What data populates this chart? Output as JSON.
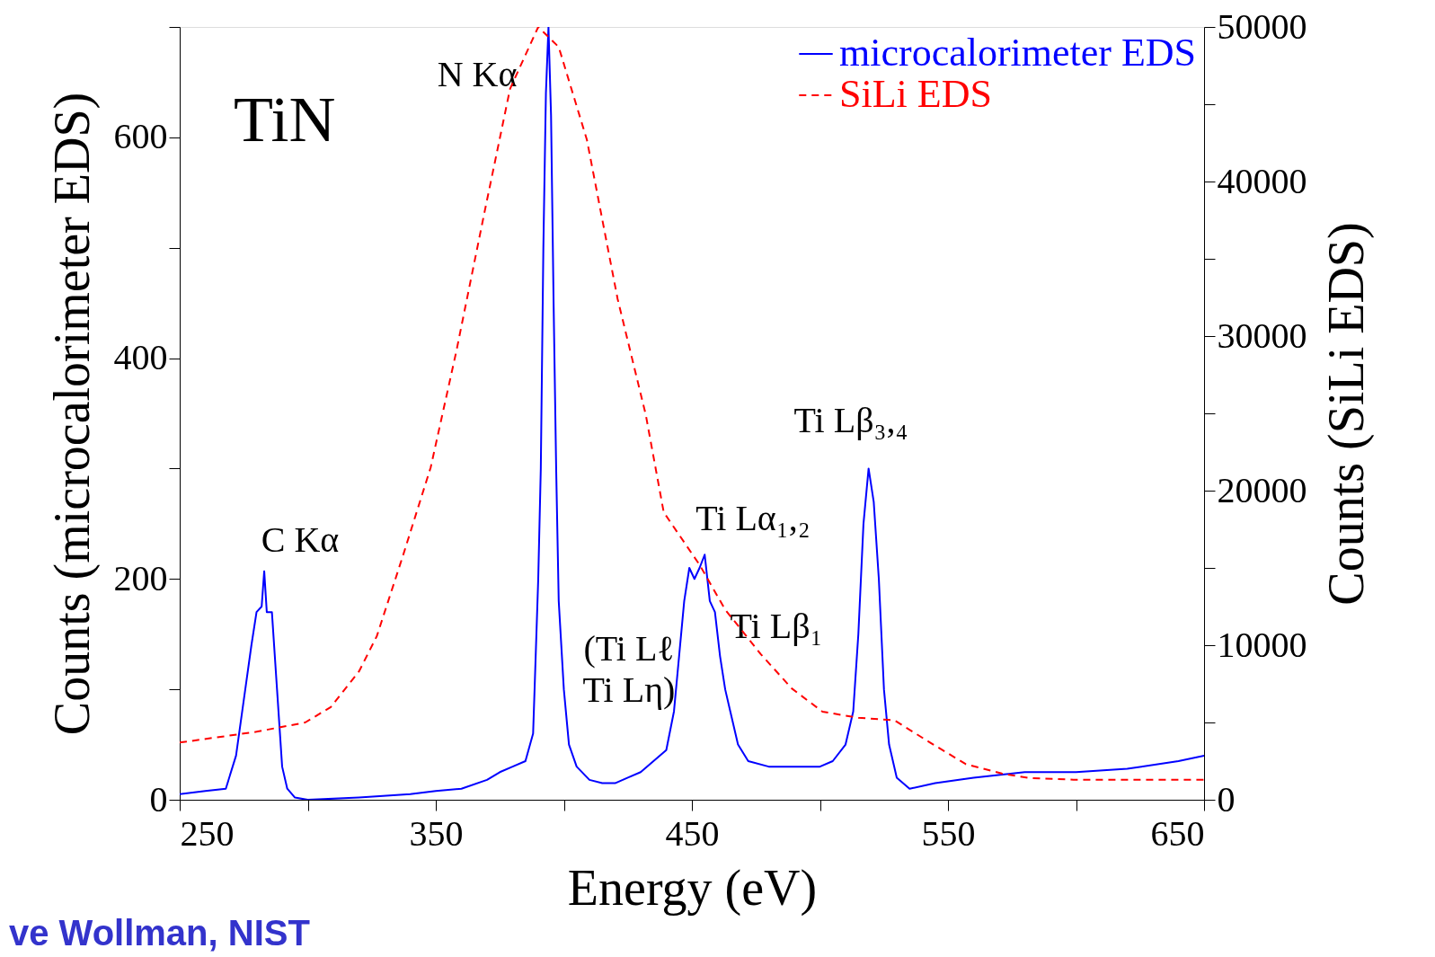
{
  "chart_data": {
    "type": "line",
    "xlabel": "Energy (eV)",
    "ylabel": "Counts (microcalorimeter EDS)",
    "y2label": "Counts (SiLi EDS)",
    "xlim": [
      250,
      650
    ],
    "xticks": [
      250,
      {
        "value": 300,
        "label": null
      },
      350,
      {
        "value": 400,
        "label": null
      },
      450,
      {
        "value": 500,
        "label": null
      },
      550,
      {
        "value": 600,
        "label": null
      },
      650
    ],
    "ylim": [
      0,
      700
    ],
    "yticks": [
      0,
      {
        "value": 100,
        "label": null
      },
      200,
      {
        "value": 300,
        "label": null
      },
      400,
      {
        "value": 500,
        "label": null
      },
      600,
      {
        "value": 700,
        "label": null
      }
    ],
    "y2lim": [
      0,
      50000
    ],
    "y2ticks": [
      0,
      {
        "value": 5000,
        "label": null
      },
      10000,
      {
        "value": 15000,
        "label": null
      },
      20000,
      {
        "value": 25000,
        "label": null
      },
      30000,
      {
        "value": 35000,
        "label": null
      },
      40000,
      {
        "value": 45000,
        "label": null
      },
      50000
    ],
    "grid": false,
    "legend": "top right",
    "series": [
      {
        "name": "microcalorimeter EDS",
        "color": "#0000ff",
        "line_style": "solid",
        "x": [
          250,
          260,
          268,
          272,
          275,
          278,
          280,
          282,
          283,
          284,
          286,
          288,
          290,
          292,
          295,
          300,
          320,
          340,
          350,
          360,
          370,
          375,
          380,
          385,
          388,
          390,
          391,
          392,
          393,
          394,
          395,
          396,
          397,
          398,
          400,
          402,
          405,
          410,
          415,
          420,
          425,
          430,
          435,
          440,
          443,
          445,
          447,
          449,
          451,
          453,
          455,
          457,
          459,
          461,
          463,
          465,
          468,
          472,
          480,
          490,
          500,
          505,
          510,
          513,
          515,
          517,
          519,
          521,
          523,
          525,
          527,
          530,
          535,
          545,
          560,
          580,
          600,
          620,
          640,
          650
        ],
        "values": [
          5,
          8,
          10,
          40,
          90,
          140,
          170,
          175,
          207,
          170,
          170,
          100,
          30,
          10,
          2,
          0,
          2,
          5,
          8,
          10,
          18,
          25,
          30,
          35,
          60,
          200,
          300,
          500,
          640,
          700,
          620,
          450,
          300,
          180,
          100,
          50,
          30,
          18,
          15,
          15,
          20,
          25,
          35,
          45,
          80,
          130,
          180,
          210,
          200,
          210,
          222,
          180,
          170,
          130,
          100,
          80,
          50,
          35,
          30,
          30,
          30,
          35,
          50,
          80,
          150,
          250,
          300,
          270,
          200,
          100,
          50,
          20,
          10,
          15,
          20,
          25,
          25,
          28,
          35,
          40
        ]
      },
      {
        "name": "SiLi EDS",
        "color": "#ff0000",
        "line_style": "dashed",
        "axis": "y2",
        "x": [
          250,
          280,
          299,
          309,
          320,
          327,
          337,
          348,
          358,
          369,
          379,
          390,
          398,
          409,
          421,
          432,
          439,
          453,
          463,
          477,
          489,
          501,
          515,
          529,
          543,
          557,
          571,
          582,
          599,
          650
        ],
        "values": [
          3700,
          4400,
          5000,
          6000,
          8300,
          10600,
          15700,
          21500,
          29000,
          38000,
          46000,
          50000,
          48700,
          42700,
          32400,
          24900,
          18600,
          15200,
          12300,
          9400,
          7200,
          5700,
          5300,
          5150,
          3700,
          2300,
          1700,
          1400,
          1300,
          1300
        ]
      }
    ],
    "annotations": [
      "TiN",
      "N Kα",
      "C Kα",
      "(Ti Lℓ\nTi Lη)",
      "Ti Lα₁,₂",
      "Ti Lβ₁",
      "Ti Lβ₃,₄",
      "ve Wollman, NIST"
    ]
  }
}
